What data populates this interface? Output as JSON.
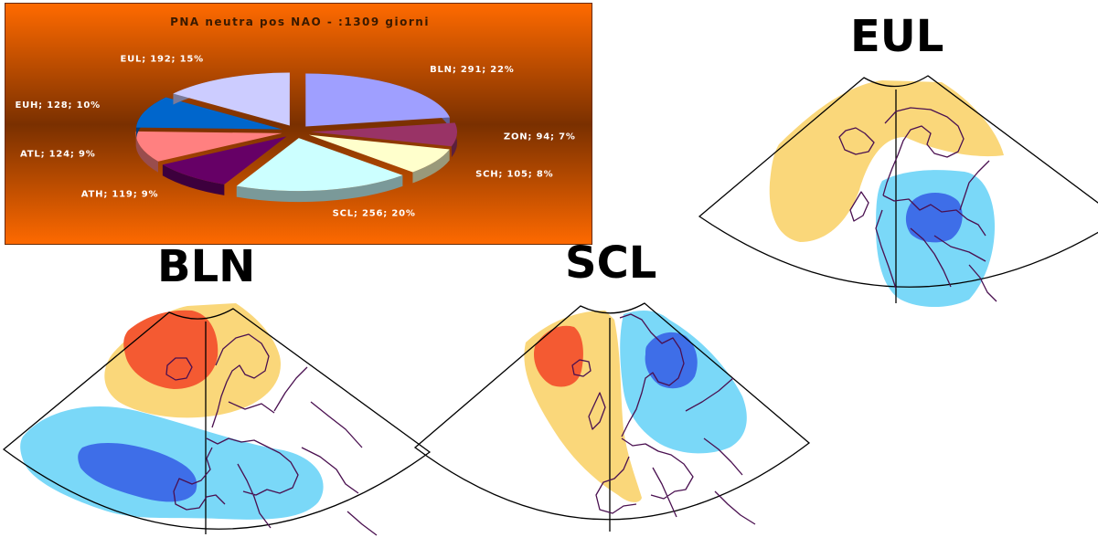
{
  "pie_panel": {
    "background_top": "#ff6a00",
    "background_mid": "#7a3000",
    "chart_data": {
      "type": "pie",
      "title": "PNA neutra pos  NAO - :1309 giorni",
      "slices": [
        {
          "name": "BLN",
          "value": 291,
          "percent": 22,
          "label": "BLN; 291; 22%",
          "color": "#9f9fff"
        },
        {
          "name": "ZON",
          "value": 94,
          "percent": 7,
          "label": "ZON; 94; 7%",
          "color": "#993366"
        },
        {
          "name": "SCH",
          "value": 105,
          "percent": 8,
          "label": "SCH; 105; 8%",
          "color": "#ffffcc"
        },
        {
          "name": "SCL",
          "value": 256,
          "percent": 20,
          "label": "SCL; 256; 20%",
          "color": "#ccffff"
        },
        {
          "name": "ATH",
          "value": 119,
          "percent": 9,
          "label": "ATH; 119; 9%",
          "color": "#660066"
        },
        {
          "name": "ATL",
          "value": 124,
          "percent": 9,
          "label": "ATL; 124; 9%",
          "color": "#ff8080"
        },
        {
          "name": "EUH",
          "value": 128,
          "percent": 10,
          "label": "EUH; 128; 10%",
          "color": "#0066cc"
        },
        {
          "name": "EUL",
          "value": 192,
          "percent": 15,
          "label": "EUL; 192; 15%",
          "color": "#ccccff"
        }
      ]
    }
  },
  "maps": {
    "eul": {
      "title": "EUL"
    },
    "bln": {
      "title": "BLN"
    },
    "scl": {
      "title": "SCL"
    }
  },
  "anomaly_colors": {
    "positive_weak": "#fad77a",
    "positive_strong": "#f45a32",
    "negative_weak": "#7ad8f8",
    "negative_strong": "#3e6ee8"
  }
}
